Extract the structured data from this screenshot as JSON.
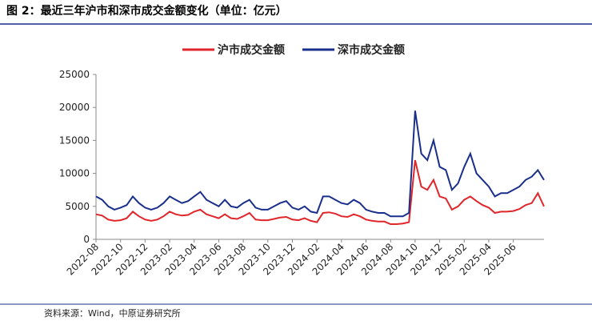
{
  "chart_data": {
    "type": "line",
    "title": "图 2：最近三年沪市和深市成交金额变化（单位：亿元）",
    "source": "资料来源：Wind，中原证券研究所",
    "categories": [
      "2022-08",
      null,
      null,
      null,
      "2022-10",
      null,
      null,
      null,
      "2022-12",
      null,
      null,
      null,
      "2023-02",
      null,
      null,
      null,
      "2023-04",
      null,
      null,
      null,
      "2023-06",
      null,
      null,
      null,
      "2023-08",
      null,
      null,
      null,
      "2023-10",
      null,
      null,
      null,
      "2023-12",
      null,
      null,
      null,
      "2024-02",
      null,
      null,
      null,
      "2024-04",
      null,
      null,
      null,
      "2024-06",
      null,
      null,
      null,
      "2024-08",
      null,
      null,
      null,
      "2024-10",
      null,
      null,
      null,
      "2024-12",
      null,
      null,
      null,
      "2025-02",
      null,
      null,
      null,
      "2025-04",
      null,
      null,
      null,
      "2025-06",
      null,
      null,
      null,
      null,
      null
    ],
    "series": [
      {
        "name": "沪市成交金额",
        "color": "#e0262b",
        "values": [
          3800,
          3600,
          3000,
          2800,
          2900,
          3200,
          4200,
          3500,
          3000,
          2800,
          3000,
          3500,
          4200,
          3800,
          3600,
          3700,
          4200,
          4500,
          3800,
          3500,
          3200,
          3800,
          3200,
          3100,
          3500,
          4000,
          3000,
          2900,
          2900,
          3100,
          3300,
          3400,
          3000,
          2900,
          3200,
          2800,
          2600,
          4000,
          4100,
          3900,
          3500,
          3400,
          3800,
          3500,
          3000,
          2800,
          2700,
          2700,
          2300,
          2300,
          2400,
          2600,
          12000,
          8000,
          7500,
          9000,
          6500,
          6200,
          4500,
          5000,
          6000,
          6500,
          5800,
          5200,
          4800,
          4000,
          4200,
          4200,
          4300,
          4600,
          5200,
          5500,
          7000,
          5000
        ]
      },
      {
        "name": "深市成交金额",
        "color": "#1a2f8c",
        "values": [
          6500,
          6000,
          5000,
          4500,
          4800,
          5200,
          6500,
          5500,
          4800,
          4500,
          4800,
          5500,
          6500,
          6000,
          5500,
          5800,
          6500,
          7200,
          6000,
          5500,
          5000,
          6000,
          5000,
          4800,
          5500,
          6000,
          4800,
          4500,
          4500,
          5000,
          5500,
          5800,
          4800,
          4500,
          5000,
          4200,
          4000,
          6500,
          6500,
          6000,
          5500,
          5300,
          6000,
          5500,
          4500,
          4200,
          4000,
          4000,
          3500,
          3500,
          3500,
          4000,
          19500,
          13000,
          12000,
          15000,
          11000,
          10500,
          7500,
          8500,
          11000,
          13000,
          10000,
          9000,
          8000,
          6500,
          7000,
          7000,
          7500,
          8000,
          9000,
          9500,
          10500,
          9000
        ]
      }
    ],
    "ylim": [
      0,
      25000
    ],
    "yticks": [
      0,
      5000,
      10000,
      15000,
      20000,
      25000
    ]
  }
}
